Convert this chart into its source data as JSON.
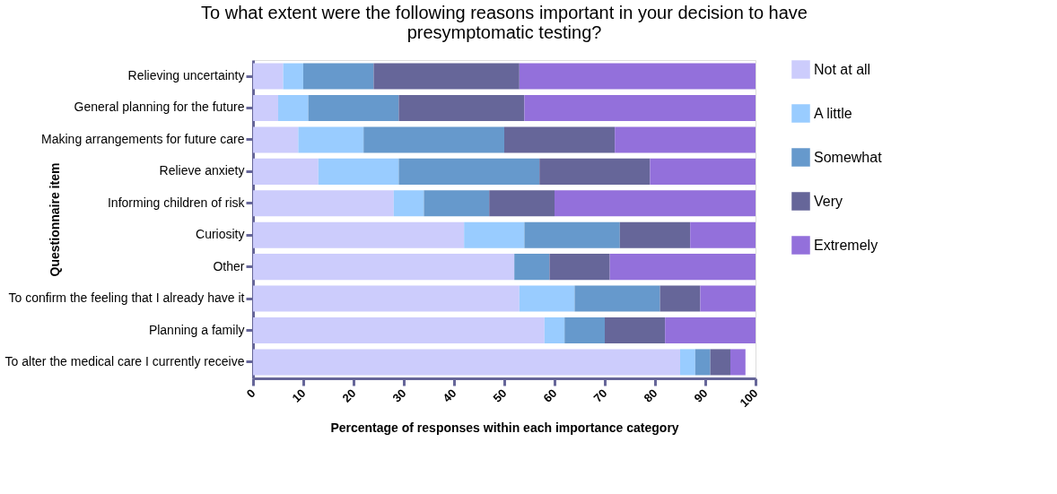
{
  "chart_data": {
    "type": "bar",
    "orientation": "horizontal",
    "stacked": true,
    "title": [
      "To what extent were the following reasons important in your decision to have",
      "presymptomatic testing?"
    ],
    "xlabel": "Percentage of responses within each importance category",
    "ylabel": "Questionnaire item",
    "categories": [
      "Relieving uncertainty",
      "General planning for the future",
      "Making arrangements for future care",
      "Relieve anxiety",
      "Informing children of risk",
      "Curiosity",
      "Other",
      "To confirm the feeling that I already have it",
      "Planning a family",
      "To alter the medical care I currently receive"
    ],
    "series": [
      {
        "name": "Not at all",
        "color": "#ccccfc",
        "values": [
          6,
          5,
          9,
          13,
          28,
          42,
          52,
          53,
          58,
          85
        ]
      },
      {
        "name": "A little",
        "color": "#99ccff",
        "values": [
          4,
          6,
          13,
          16,
          6,
          12,
          0,
          11,
          4,
          3
        ]
      },
      {
        "name": "Somewhat",
        "color": "#6699cc",
        "values": [
          14,
          18,
          28,
          28,
          13,
          19,
          7,
          17,
          8,
          3
        ]
      },
      {
        "name": "Very",
        "color": "#666699",
        "values": [
          29,
          25,
          22,
          22,
          13,
          14,
          12,
          8,
          12,
          4
        ]
      },
      {
        "name": "Extremely",
        "color": "#9370db",
        "values": [
          47,
          46,
          28,
          21,
          40,
          13,
          29,
          11,
          18,
          3
        ]
      }
    ],
    "xlim": [
      0,
      100
    ],
    "xticks": [
      0,
      10,
      20,
      30,
      40,
      50,
      60,
      70,
      80,
      90,
      100
    ],
    "grid": false,
    "legend": "right"
  }
}
